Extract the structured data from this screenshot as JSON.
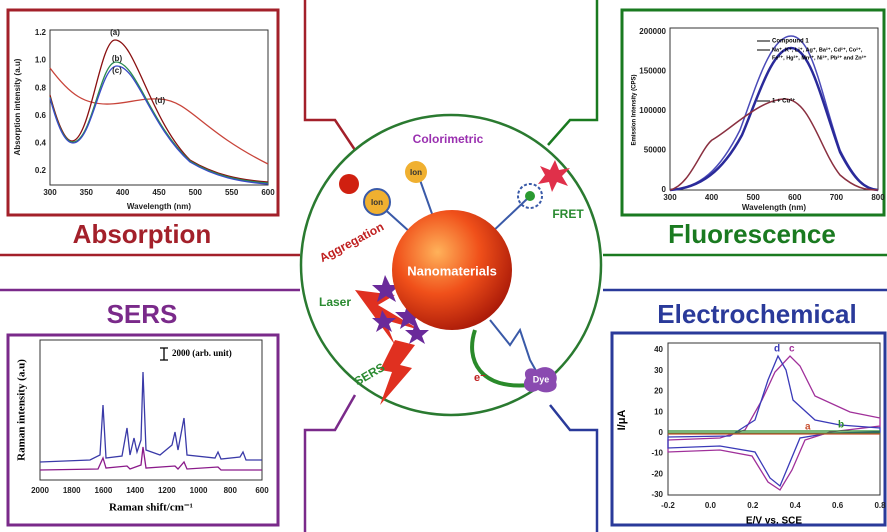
{
  "absorption": {
    "title": "Absorption",
    "x_label": "Wavelength (nm)",
    "y_label": "Absorption intensity (a.u)",
    "x_ticks": [
      "300",
      "350",
      "400",
      "450",
      "500",
      "550",
      "600"
    ],
    "y_ticks": [
      "0.2",
      "0.4",
      "0.6",
      "0.8",
      "1.0",
      "1.2"
    ],
    "curve_labels": [
      "(a)",
      "(b)",
      "(c)",
      "(d)"
    ]
  },
  "fluorescence": {
    "title": "Fluorescence",
    "x_label": "Wavelength (nm)",
    "y_label": "Emission Intensity (CPS)",
    "x_ticks": [
      "300",
      "400",
      "500",
      "600",
      "700",
      "800"
    ],
    "y_ticks": [
      "0",
      "50000",
      "100000",
      "150000",
      "200000"
    ],
    "legend": [
      "Compound 1",
      "Na⁺, K⁺, Li⁺, Ag⁺, Ba²⁺, Cd²⁺, Co²⁺,",
      "Fe³⁺, Hg²⁺, Mn²⁺, Ni²⁺, Pb²⁺ and Zn²⁺",
      "1 + Cu²⁺"
    ]
  },
  "sers": {
    "title": "SERS",
    "x_label": "Raman shift/cm⁻¹",
    "y_label": "Raman intensity (a.u)",
    "scale_label": "2000 (arb. unit)",
    "x_ticks": [
      "2000",
      "1800",
      "1600",
      "1400",
      "1200",
      "1000",
      "800",
      "600"
    ]
  },
  "electrochemical": {
    "title": "Electrochemical",
    "x_label": "E/V vs. SCE",
    "y_label": "I/μA",
    "x_ticks": [
      "-0.2",
      "0.0",
      "0.2",
      "0.4",
      "0.6",
      "0.8"
    ],
    "y_ticks": [
      "40",
      "30",
      "20",
      "10",
      "0",
      "-10",
      "-20",
      "-30"
    ],
    "curve_labels": [
      "d",
      "c",
      "a",
      "b"
    ]
  },
  "center": {
    "title": "Nanomaterials",
    "colorimetric": "Colorimetric",
    "fret": "FRET",
    "aggregation": "Aggregation",
    "laser": "Laser",
    "sers": "SERS",
    "ion_1": "Ion",
    "ion_2": "Ion",
    "dye": "Dye",
    "electron": "e⁻"
  }
}
